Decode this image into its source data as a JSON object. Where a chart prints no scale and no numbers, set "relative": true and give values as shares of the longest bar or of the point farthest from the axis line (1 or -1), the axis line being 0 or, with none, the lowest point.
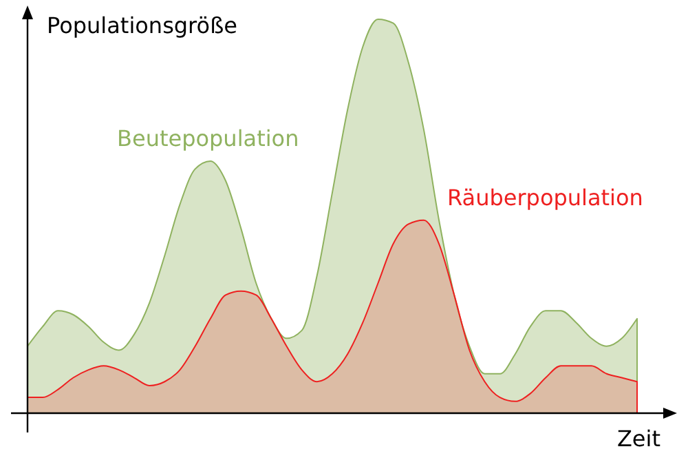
{
  "chart_data": {
    "type": "area",
    "relative": true,
    "xlabel": "Zeit",
    "ylabel": "Populationsgröße",
    "categories": [
      null,
      null,
      null,
      null,
      null,
      null,
      null,
      null,
      null,
      null,
      null,
      null,
      null,
      null,
      null,
      null,
      null,
      null,
      null,
      null,
      null,
      null,
      null,
      null,
      null,
      null,
      null,
      null,
      null,
      null,
      null,
      null,
      null,
      null,
      null,
      null,
      null,
      null,
      null,
      null,
      null
    ],
    "series": [
      {
        "name": "Beutepopulation",
        "color": "#8fb25f",
        "values": [
          0.17,
          0.22,
          0.26,
          0.25,
          0.22,
          0.18,
          0.16,
          0.2,
          0.28,
          0.4,
          0.53,
          0.62,
          0.64,
          0.59,
          0.47,
          0.33,
          0.24,
          0.19,
          0.21,
          0.35,
          0.56,
          0.77,
          0.93,
          1.0,
          0.99,
          0.89,
          0.72,
          0.49,
          0.3,
          0.17,
          0.1,
          0.1,
          0.15,
          0.22,
          0.26,
          0.26,
          0.23,
          0.19,
          0.17,
          0.19,
          0.24
        ]
      },
      {
        "name": "Räuberpopulation",
        "color": "#ee2020",
        "values": [
          0.04,
          0.04,
          0.06,
          0.09,
          0.11,
          0.12,
          0.11,
          0.09,
          0.07,
          0.08,
          0.11,
          0.17,
          0.24,
          0.3,
          0.31,
          0.3,
          0.24,
          0.17,
          0.11,
          0.08,
          0.1,
          0.15,
          0.23,
          0.33,
          0.43,
          0.48,
          0.49,
          0.43,
          0.3,
          0.16,
          0.08,
          0.04,
          0.03,
          0.05,
          0.09,
          0.12,
          0.12,
          0.12,
          0.1,
          0.09,
          0.08
        ]
      }
    ]
  }
}
